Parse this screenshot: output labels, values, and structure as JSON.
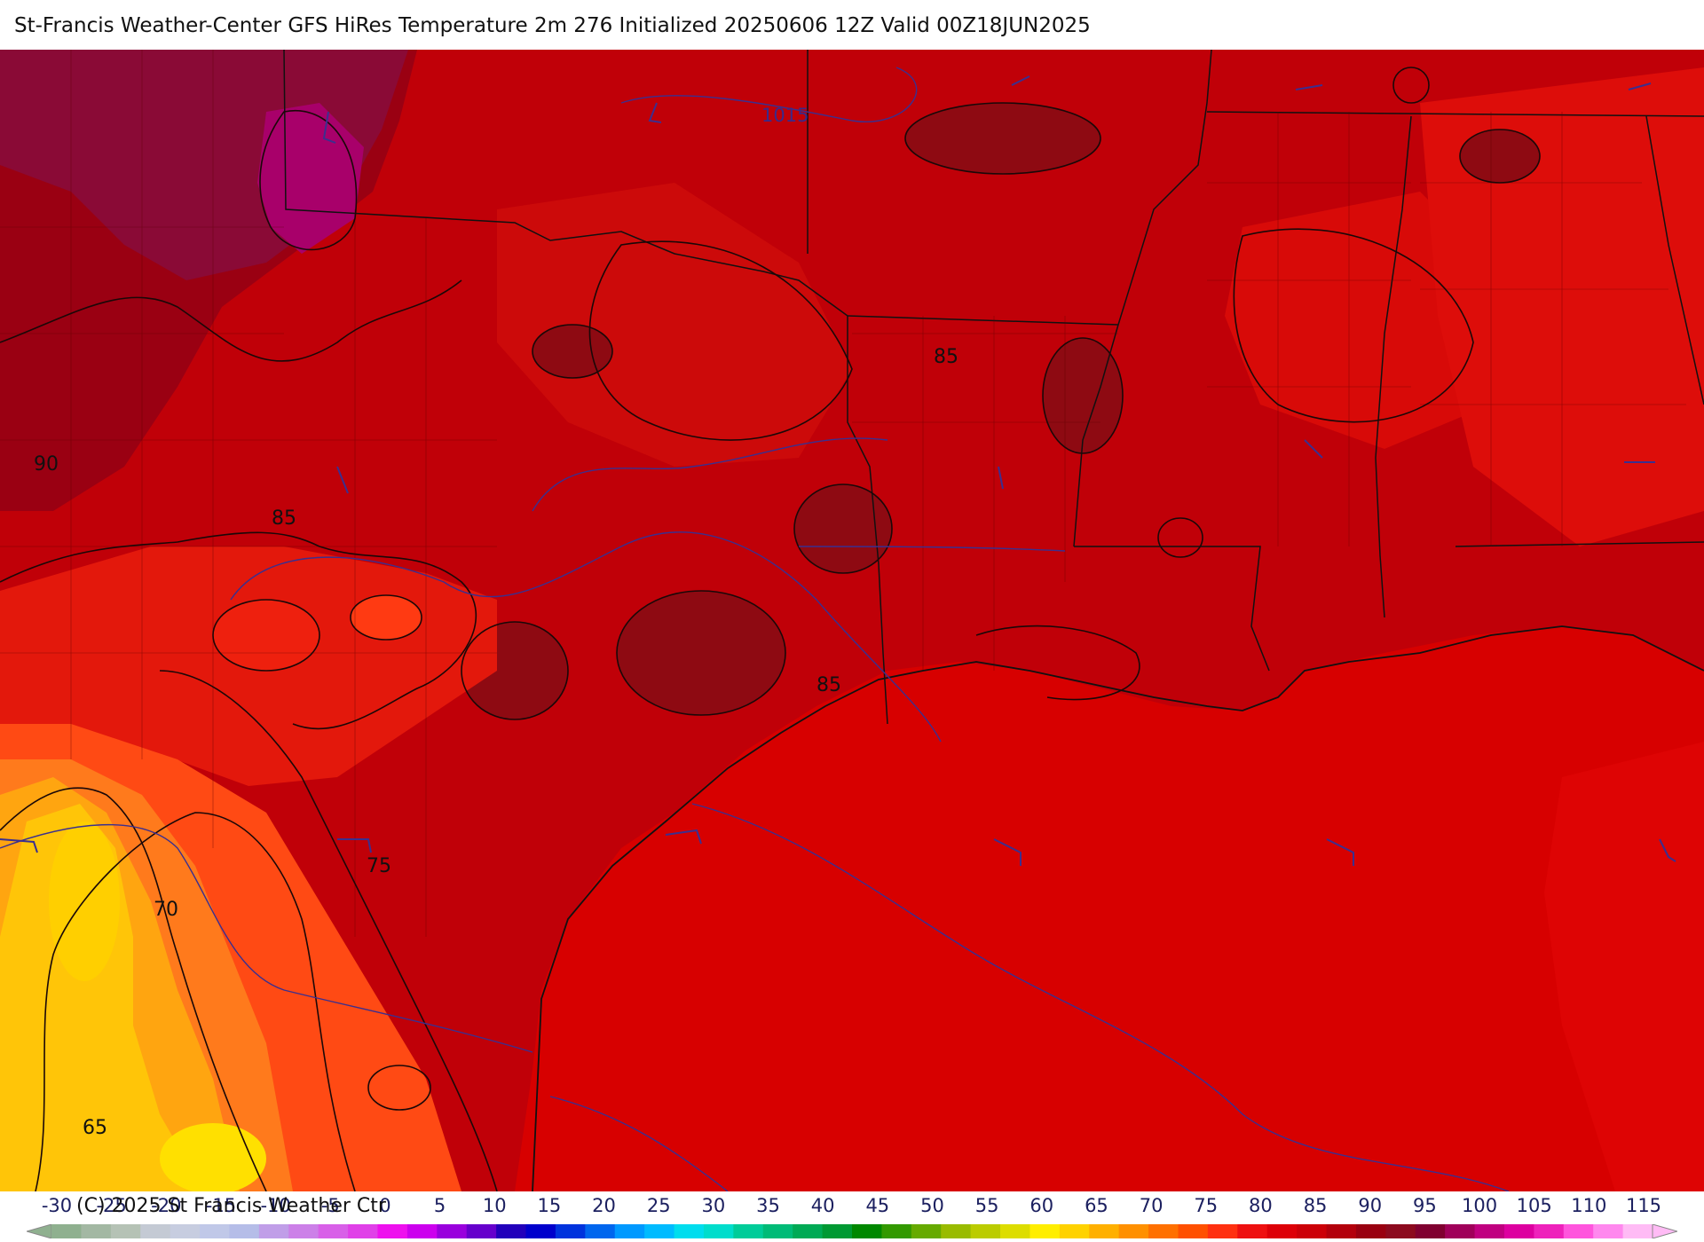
{
  "header": {
    "title": "St-Francis Weather-Center GFS HiRes Temperature 2m  276 Initialized 20250606 12Z Valid 00Z18JUN2025"
  },
  "map": {
    "contour_labels": [
      "90",
      "85",
      "85",
      "85",
      "75",
      "70",
      "65"
    ],
    "isobar_label": "1015",
    "colors": {
      "t95": "#8c0a1e",
      "t90": "#b3000c",
      "t85": "#cc0008",
      "t80": "#e61a0c",
      "t75": "#ff3a10",
      "t70": "#ff6a1a",
      "t65": "#ffa010",
      "t60": "#ffd200",
      "t100": "#a8006a",
      "gulf": "#d70000",
      "isobar": "#3b2f8f",
      "contour": "#1a0808"
    }
  },
  "legend": {
    "copyright": "(C) 2025 St Francis Weather Ctr",
    "labels": [
      "-30",
      "-25",
      "-20",
      "-15",
      "-10",
      "-5",
      "0",
      "5",
      "10",
      "15",
      "20",
      "25",
      "30",
      "35",
      "40",
      "45",
      "50",
      "55",
      "60",
      "65",
      "70",
      "75",
      "80",
      "85",
      "90",
      "95",
      "100",
      "105",
      "110",
      "115"
    ],
    "colors": [
      "#8fb08f",
      "#a3b8a3",
      "#b5c2b5",
      "#c4cad4",
      "#c7cde0",
      "#c0c8e8",
      "#b5bde8",
      "#c09ee8",
      "#cc80e8",
      "#d860e8",
      "#e040e8",
      "#ee10ee",
      "#cc00ee",
      "#9900dd",
      "#6600cc",
      "#2200bb",
      "#0000cc",
      "#0033dd",
      "#0066ee",
      "#0099ff",
      "#00bbff",
      "#00ddee",
      "#00ddcc",
      "#00cc99",
      "#00bb77",
      "#00aa55",
      "#009933",
      "#008800",
      "#339900",
      "#66aa00",
      "#99bb00",
      "#bbcc00",
      "#dddd00",
      "#ffee00",
      "#ffd200",
      "#ffb000",
      "#ff9000",
      "#ff7000",
      "#ff5000",
      "#ff3010",
      "#ee1010",
      "#dd0008",
      "#cc0008",
      "#b3000c",
      "#990010",
      "#8c0a1e",
      "#800030",
      "#a0005a",
      "#c00080",
      "#dd00a0",
      "#ee22bb",
      "#ff55dd",
      "#ff88ee",
      "#ffbbf5"
    ]
  }
}
